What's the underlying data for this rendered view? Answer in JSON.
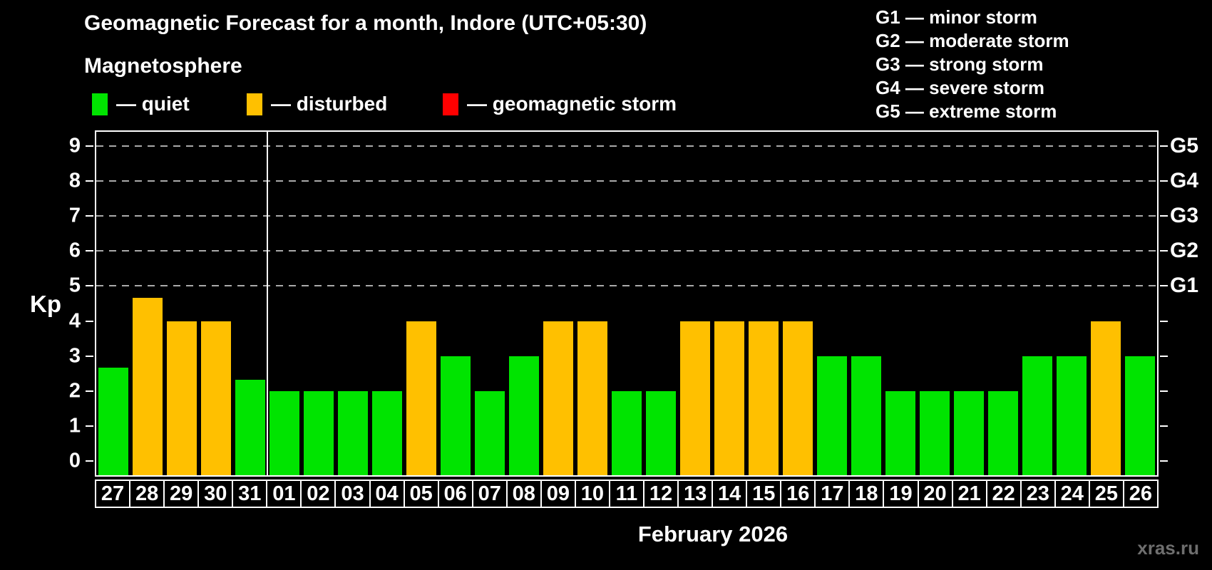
{
  "title": "Geomagnetic Forecast for a month, Indore (UTC+05:30)",
  "subtitle": "Magnetosphere",
  "legend": {
    "items": [
      {
        "label": "— quiet",
        "status": "quiet"
      },
      {
        "label": "— disturbed",
        "status": "disturbed"
      },
      {
        "label": "— geomagnetic storm",
        "status": "storm"
      }
    ]
  },
  "storm_scale_legend": [
    "G1 — minor storm",
    "G2 — moderate storm",
    "G3 — strong storm",
    "G4 — severe storm",
    "G5 — extreme storm"
  ],
  "axes": {
    "y_label": "Kp",
    "y_ticks": [
      0,
      1,
      2,
      3,
      4,
      5,
      6,
      7,
      8,
      9
    ],
    "right_labels": [
      {
        "level": 5,
        "label": "G1"
      },
      {
        "level": 6,
        "label": "G2"
      },
      {
        "level": 7,
        "label": "G3"
      },
      {
        "level": 8,
        "label": "G4"
      },
      {
        "level": 9,
        "label": "G5"
      }
    ],
    "x_label": "February 2026"
  },
  "colors": {
    "quiet": "#00e400",
    "disturbed": "#ffc000",
    "storm": "#ff0000",
    "axis": "#ffffff",
    "grid": "#aaaaaa",
    "background": "#000000"
  },
  "watermark": "xras.ru",
  "chart_data": {
    "type": "bar",
    "title": "Geomagnetic Forecast for a month, Indore (UTC+05:30)",
    "xlabel": "February 2026",
    "ylabel": "Kp",
    "ylim": [
      0,
      9
    ],
    "grid": "dashed horizontal lines at Kp 5-9 only",
    "legend_position": "top",
    "categories": [
      "27",
      "28",
      "29",
      "30",
      "31",
      "01",
      "02",
      "03",
      "04",
      "05",
      "06",
      "07",
      "08",
      "09",
      "10",
      "11",
      "12",
      "13",
      "14",
      "15",
      "16",
      "17",
      "18",
      "19",
      "20",
      "21",
      "22",
      "23",
      "24",
      "25",
      "26"
    ],
    "values": [
      2.67,
      4.67,
      4,
      4,
      2.33,
      2,
      2,
      2,
      2,
      4,
      3,
      2,
      3,
      4,
      4,
      2,
      2,
      4,
      4,
      4,
      4,
      3,
      3,
      2,
      2,
      2,
      2,
      3,
      3,
      4,
      3
    ],
    "statuses": [
      "quiet",
      "disturbed",
      "disturbed",
      "disturbed",
      "quiet",
      "quiet",
      "quiet",
      "quiet",
      "quiet",
      "disturbed",
      "quiet",
      "quiet",
      "quiet",
      "disturbed",
      "disturbed",
      "quiet",
      "quiet",
      "disturbed",
      "disturbed",
      "disturbed",
      "disturbed",
      "quiet",
      "quiet",
      "quiet",
      "quiet",
      "quiet",
      "quiet",
      "quiet",
      "quiet",
      "disturbed",
      "quiet"
    ],
    "month_boundary_after_index": 4
  }
}
